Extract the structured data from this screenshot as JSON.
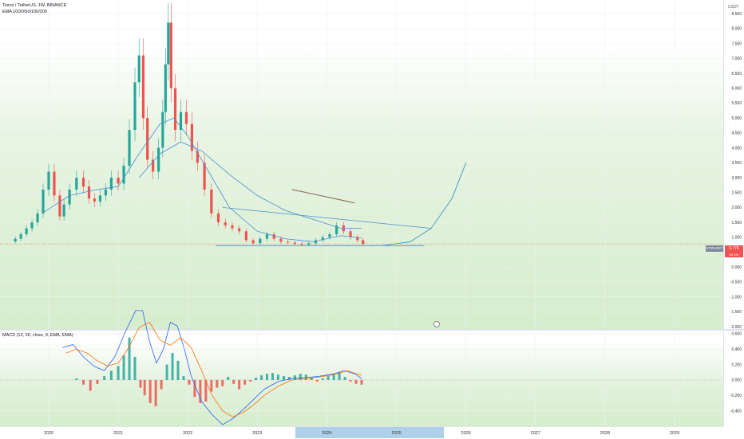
{
  "header": {
    "symbol_line": "Tezos / TetherUS, 1W, BINANCE",
    "ema_line": "EMA 10/20/50/100/200",
    "macd_line": "MACD (12, 26, close, 9, EMA, EMA)",
    "currency": "USDT"
  },
  "price_tag": {
    "ticker": "XTZUSDT",
    "price": "0.776",
    "countdown": "5d 12h"
  },
  "colors": {
    "up": "#26a69a",
    "down": "#ef5350",
    "ema": "#4a8fd4",
    "ema_slow": "#8d6e63",
    "arc": "#3d98c4",
    "macd_line": "#2962ff",
    "signal_line": "#ff6d00",
    "price_line": "#ef5350"
  },
  "chart_data": [
    {
      "type": "candlestick",
      "title": "Tezos / TetherUS, 1W, BINANCE",
      "y_ticks": [
        "8.500",
        "8.000",
        "7.500",
        "7.000",
        "6.500",
        "6.000",
        "5.500",
        "5.000",
        "4.500",
        "4.000",
        "3.500",
        "3.000",
        "2.500",
        "2.000",
        "1.500",
        "1.000",
        "0.500",
        "0.000",
        "-0.500",
        "-1.000",
        "-1.500",
        "-2.000"
      ],
      "x_ticks": [
        "2020",
        "2021",
        "2022",
        "2023",
        "2024",
        "2025",
        "2026",
        "2027",
        "2028",
        "2029"
      ],
      "x_range": [
        2019.3,
        2029.7
      ],
      "ylim": [
        -2.0,
        8.8
      ],
      "series": [
        {
          "name": "Close",
          "x": [
            2019.52,
            2019.6,
            2019.68,
            2019.76,
            2019.84,
            2019.92,
            2020.0,
            2020.08,
            2020.16,
            2020.22,
            2020.3,
            2020.4,
            2020.5,
            2020.58,
            2020.66,
            2020.74,
            2020.82,
            2020.9,
            2021.0,
            2021.08,
            2021.16,
            2021.24,
            2021.3,
            2021.36,
            2021.42,
            2021.5,
            2021.58,
            2021.64,
            2021.68,
            2021.72,
            2021.76,
            2021.82,
            2021.9,
            2021.98,
            2022.06,
            2022.14,
            2022.24,
            2022.34,
            2022.44,
            2022.54,
            2022.64,
            2022.74,
            2022.84,
            2022.94,
            2023.04,
            2023.14,
            2023.24,
            2023.34,
            2023.44,
            2023.54,
            2023.64,
            2023.74,
            2023.84,
            2023.94,
            2024.04,
            2024.14,
            2024.24,
            2024.34,
            2024.44,
            2024.52
          ],
          "values": [
            0.95,
            1.1,
            1.3,
            1.5,
            1.8,
            2.6,
            3.2,
            2.4,
            1.7,
            2.1,
            2.6,
            3.0,
            2.7,
            2.3,
            2.2,
            2.4,
            2.6,
            3.0,
            2.8,
            3.4,
            4.6,
            6.2,
            7.1,
            5.0,
            3.6,
            3.2,
            4.0,
            5.2,
            6.8,
            8.2,
            6.0,
            4.6,
            5.2,
            4.8,
            3.9,
            3.5,
            2.6,
            1.8,
            1.5,
            1.4,
            1.3,
            1.2,
            0.9,
            0.8,
            0.95,
            1.1,
            0.95,
            0.85,
            0.82,
            0.78,
            0.75,
            0.8,
            0.9,
            1.0,
            1.1,
            1.4,
            1.2,
            1.0,
            0.9,
            0.776
          ]
        },
        {
          "name": "EMA 50",
          "x": [
            2019.9,
            2020.3,
            2020.7,
            2021.0,
            2021.3,
            2021.6,
            2021.8,
            2022.0,
            2022.3,
            2022.6,
            2023.0,
            2023.4,
            2023.8,
            2024.2,
            2024.5
          ],
          "values": [
            1.8,
            2.4,
            2.6,
            2.7,
            3.8,
            4.8,
            5.0,
            4.4,
            3.2,
            2.0,
            1.2,
            0.95,
            0.85,
            1.05,
            0.98
          ]
        },
        {
          "name": "EMA 100",
          "x": [
            2021.3,
            2021.6,
            2021.9,
            2022.2,
            2022.6,
            2023.0,
            2023.4,
            2023.8,
            2024.2,
            2024.5
          ],
          "values": [
            3.0,
            3.8,
            4.2,
            3.9,
            3.1,
            2.4,
            1.9,
            1.6,
            1.3,
            1.3
          ]
        },
        {
          "name": "EMA 200",
          "x": [
            2023.5,
            2023.8,
            2024.1,
            2024.4
          ],
          "values": [
            2.6,
            2.45,
            2.3,
            2.15
          ]
        },
        {
          "name": "Trendline",
          "x": [
            2022.5,
            2025.5
          ],
          "values": [
            2.0,
            1.3
          ]
        },
        {
          "name": "Support",
          "x": [
            2022.4,
            2025.4
          ],
          "values": [
            0.72,
            0.72
          ]
        },
        {
          "name": "Projection arc",
          "x": [
            2024.8,
            2025.2,
            2025.5,
            2025.8,
            2026.0
          ],
          "values": [
            0.72,
            0.85,
            1.3,
            2.3,
            3.5
          ]
        }
      ]
    },
    {
      "type": "bar",
      "title": "MACD (12, 26, close, 9, EMA, EMA)",
      "y_ticks": [
        "0.600",
        "0.400",
        "0.200",
        "0.000",
        "-0.200",
        "-0.400"
      ],
      "ylim": [
        -0.58,
        0.62
      ],
      "histogram_x": [
        2020.4,
        2020.5,
        2020.6,
        2020.7,
        2020.8,
        2020.9,
        2021.0,
        2021.08,
        2021.16,
        2021.24,
        2021.32,
        2021.38,
        2021.46,
        2021.54,
        2021.62,
        2021.7,
        2021.78,
        2021.86,
        2021.94,
        2022.02,
        2022.1,
        2022.18,
        2022.26,
        2022.34,
        2022.42,
        2022.5,
        2022.58,
        2022.66,
        2022.74,
        2022.82,
        2022.9,
        2022.98,
        2023.06,
        2023.14,
        2023.22,
        2023.3,
        2023.38,
        2023.46,
        2023.54,
        2023.62,
        2023.7,
        2023.78,
        2023.86,
        2023.94,
        2024.02,
        2024.1,
        2024.18,
        2024.26,
        2024.34,
        2024.42,
        2024.5
      ],
      "histogram": [
        0.02,
        -0.06,
        -0.14,
        -0.05,
        0.05,
        0.12,
        0.18,
        0.32,
        0.55,
        0.3,
        -0.1,
        -0.2,
        -0.3,
        -0.34,
        -0.12,
        0.2,
        0.35,
        0.25,
        0.05,
        -0.06,
        -0.22,
        -0.3,
        -0.28,
        -0.15,
        -0.1,
        -0.08,
        0.04,
        -0.05,
        -0.12,
        -0.06,
        -0.02,
        0.03,
        0.06,
        0.08,
        0.09,
        0.07,
        0.05,
        0.04,
        0.06,
        0.08,
        0.07,
        0.03,
        -0.02,
        0.02,
        0.05,
        0.08,
        0.1,
        0.04,
        -0.02,
        -0.05,
        -0.06
      ],
      "macd_x": [
        2020.2,
        2020.35,
        2020.5,
        2020.65,
        2020.8,
        2020.95,
        2021.1,
        2021.25,
        2021.35,
        2021.45,
        2021.55,
        2021.65,
        2021.75,
        2021.85,
        2021.95,
        2022.05,
        2022.2,
        2022.35,
        2022.5,
        2022.65,
        2022.8,
        2022.95,
        2023.1,
        2023.3,
        2023.5,
        2023.7,
        2023.9,
        2024.1,
        2024.25,
        2024.4,
        2024.5
      ],
      "macd": [
        0.42,
        0.46,
        0.3,
        0.18,
        0.12,
        0.3,
        0.62,
        0.9,
        0.9,
        0.5,
        0.22,
        0.4,
        0.75,
        0.7,
        0.4,
        0.05,
        -0.28,
        -0.45,
        -0.58,
        -0.5,
        -0.38,
        -0.25,
        -0.12,
        -0.02,
        0.02,
        0.03,
        0.05,
        0.08,
        0.12,
        0.08,
        0.02
      ],
      "signal_x": [
        2020.25,
        2020.4,
        2020.55,
        2020.7,
        2020.85,
        2021.0,
        2021.15,
        2021.3,
        2021.45,
        2021.6,
        2021.75,
        2021.9,
        2022.05,
        2022.2,
        2022.35,
        2022.5,
        2022.65,
        2022.8,
        2022.95,
        2023.1,
        2023.3,
        2023.5,
        2023.7,
        2023.9,
        2024.1,
        2024.3,
        2024.5
      ],
      "signal": [
        0.35,
        0.4,
        0.35,
        0.25,
        0.18,
        0.22,
        0.42,
        0.68,
        0.75,
        0.52,
        0.45,
        0.55,
        0.42,
        0.12,
        -0.2,
        -0.4,
        -0.48,
        -0.42,
        -0.32,
        -0.2,
        -0.08,
        0.0,
        0.02,
        0.04,
        0.07,
        0.12,
        0.06
      ]
    }
  ]
}
